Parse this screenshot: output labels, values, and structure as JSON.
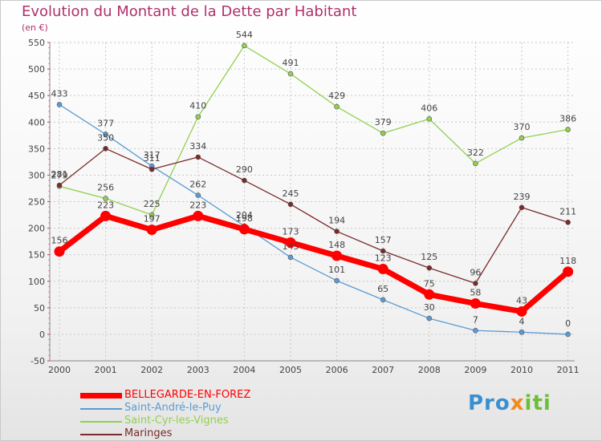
{
  "header": {
    "title": "Evolution du Montant de la Dette par Habitant",
    "subtitle": "(en €)"
  },
  "chart_data": {
    "type": "line",
    "title": "Evolution du Montant de la Dette par Habitant",
    "subtitle": "(en €)",
    "x": [
      "2000",
      "2001",
      "2002",
      "2003",
      "2004",
      "2005",
      "2006",
      "2007",
      "2008",
      "2009",
      "2010",
      "2011"
    ],
    "ylim": [
      -50,
      550
    ],
    "yticks": [
      -50,
      0,
      50,
      100,
      150,
      200,
      250,
      300,
      350,
      400,
      450,
      500,
      550
    ],
    "grid": true,
    "legend_position": "bottom-left",
    "series": [
      {
        "name": "BELLEGARDE-EN-FOREZ",
        "color": "#ff0000",
        "bold": true,
        "values": [
          156,
          223,
          197,
          223,
          198,
          173,
          148,
          123,
          75,
          58,
          43,
          118
        ]
      },
      {
        "name": "Saint-André-le-Puy",
        "color": "#5b9bd5",
        "values": [
          433,
          377,
          317,
          262,
          204,
          145,
          101,
          65,
          30,
          7,
          4,
          0
        ]
      },
      {
        "name": "Saint-Cyr-les-Vignes",
        "color": "#92d050",
        "values": [
          279,
          256,
          225,
          410,
          544,
          491,
          429,
          379,
          406,
          322,
          370,
          386
        ]
      },
      {
        "name": "Maringes",
        "color": "#7a2a2a",
        "values": [
          281,
          350,
          311,
          334,
          290,
          245,
          194,
          157,
          125,
          96,
          239,
          211
        ]
      }
    ]
  },
  "logo": {
    "part1": "Pro",
    "part2": "x",
    "part3": "iti"
  }
}
